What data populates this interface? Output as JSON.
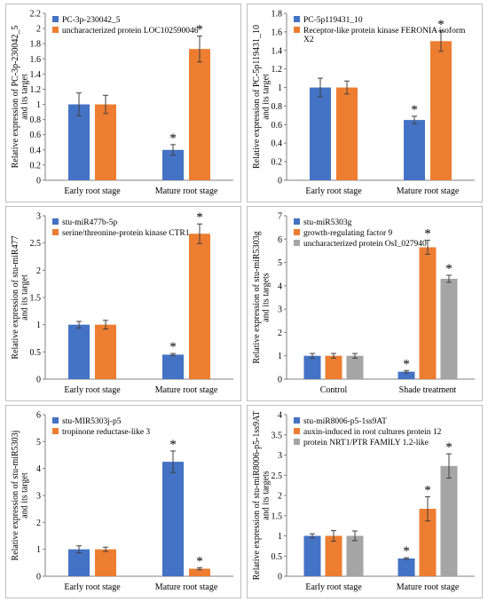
{
  "colors": {
    "blue": "#4472C4",
    "orange": "#ED7D31",
    "gray": "#A5A5A5"
  },
  "chart_data": [
    {
      "type": "bar",
      "ylabel": "Relative expression of PC-3p-230042_5 and its target",
      "categories": [
        "Early root stage",
        "Mature root stage"
      ],
      "ylim": [
        0,
        2.2
      ],
      "yticks": [
        0,
        0.2,
        0.4,
        0.6,
        0.8,
        1,
        1.2,
        1.4,
        1.6,
        1.8,
        2,
        2.2
      ],
      "legend_position": "top-left",
      "series": [
        {
          "name": "PC-3p-230042_5",
          "color": "#4472C4",
          "values": [
            1.0,
            0.4
          ],
          "errors": [
            0.15,
            0.07
          ],
          "significant": [
            false,
            true
          ]
        },
        {
          "name": "uncharacterized protein LOC102590046",
          "color": "#ED7D31",
          "values": [
            1.0,
            1.73
          ],
          "errors": [
            0.12,
            0.17
          ],
          "significant": [
            false,
            true
          ]
        }
      ]
    },
    {
      "type": "bar",
      "ylabel": "Relative expression of PC-5p119431_10 and its target",
      "categories": [
        "Early root stage",
        "Mature root stage"
      ],
      "ylim": [
        0,
        1.8
      ],
      "yticks": [
        0,
        0.2,
        0.4,
        0.6,
        0.8,
        1,
        1.2,
        1.4,
        1.6,
        1.8
      ],
      "legend_position": "top-left",
      "series": [
        {
          "name": "PC-5p119431_10",
          "color": "#4472C4",
          "values": [
            1.0,
            0.65
          ],
          "errors": [
            0.1,
            0.04
          ],
          "significant": [
            false,
            true
          ]
        },
        {
          "name": "Receptor-like protein kinase FERONIA isoform X2",
          "color": "#ED7D31",
          "values": [
            1.0,
            1.5
          ],
          "errors": [
            0.07,
            0.11
          ],
          "significant": [
            false,
            true
          ]
        }
      ]
    },
    {
      "type": "bar",
      "ylabel": "Relative expression of stu-miR477 and its target",
      "categories": [
        "Early root stage",
        "Mature root stage"
      ],
      "ylim": [
        0,
        3
      ],
      "yticks": [
        0,
        0.5,
        1,
        1.5,
        2,
        2.5,
        3
      ],
      "legend_position": "top-left",
      "series": [
        {
          "name": "stu-miR477b-5p",
          "color": "#4472C4",
          "values": [
            1.0,
            0.45
          ],
          "errors": [
            0.06,
            0.02
          ],
          "significant": [
            false,
            true
          ]
        },
        {
          "name": "serine/threonine-protein kinase CTR1",
          "color": "#ED7D31",
          "values": [
            1.0,
            2.67
          ],
          "errors": [
            0.08,
            0.18
          ],
          "significant": [
            false,
            true
          ]
        }
      ]
    },
    {
      "type": "bar",
      "ylabel": "Relative expression of stu-miR5303g and its targets",
      "categories": [
        "Control",
        "Shade treatment"
      ],
      "ylim": [
        0,
        7
      ],
      "yticks": [
        0,
        1,
        2,
        3,
        4,
        5,
        6,
        7
      ],
      "legend_position": "top-left",
      "series": [
        {
          "name": "stu-miR5303g",
          "color": "#4472C4",
          "values": [
            1.0,
            0.32
          ],
          "errors": [
            0.1,
            0.05
          ],
          "significant": [
            false,
            true
          ]
        },
        {
          "name": "growth-regulating factor 9",
          "color": "#ED7D31",
          "values": [
            1.0,
            5.65
          ],
          "errors": [
            0.1,
            0.3
          ],
          "significant": [
            false,
            true
          ]
        },
        {
          "name": "uncharacterized protein OsI_027940",
          "color": "#A5A5A5",
          "values": [
            1.0,
            4.3
          ],
          "errors": [
            0.1,
            0.15
          ],
          "significant": [
            false,
            true
          ]
        }
      ]
    },
    {
      "type": "bar",
      "ylabel": "Relative expression of stu-miR5303j and its target",
      "categories": [
        "Early root stage",
        "Mature root stage"
      ],
      "ylim": [
        0,
        6
      ],
      "yticks": [
        0,
        1,
        2,
        3,
        4,
        5,
        6
      ],
      "legend_position": "top-left",
      "series": [
        {
          "name": "stu-MIR5303j-p5",
          "color": "#4472C4",
          "values": [
            1.0,
            4.25
          ],
          "errors": [
            0.13,
            0.4
          ],
          "significant": [
            false,
            true
          ]
        },
        {
          "name": "tropinone reductase-like 3",
          "color": "#ED7D31",
          "values": [
            1.0,
            0.28
          ],
          "errors": [
            0.08,
            0.04
          ],
          "significant": [
            false,
            true
          ]
        }
      ]
    },
    {
      "type": "bar",
      "ylabel": "Relative expression of stu-miR8006-p5-1ss9AT and its targets",
      "categories": [
        "Early root stage",
        "Mature root stage"
      ],
      "ylim": [
        0,
        4
      ],
      "yticks": [
        0,
        0.5,
        1,
        1.5,
        2,
        2.5,
        3,
        3.5,
        4
      ],
      "legend_position": "top-left",
      "series": [
        {
          "name": "stu-miR8006-p5-1ss9AT",
          "color": "#4472C4",
          "values": [
            1.0,
            0.44
          ],
          "errors": [
            0.05,
            0.02
          ],
          "significant": [
            false,
            true
          ]
        },
        {
          "name": "auxin-induced in root cultures protein 12",
          "color": "#ED7D31",
          "values": [
            1.0,
            1.67
          ],
          "errors": [
            0.13,
            0.3
          ],
          "significant": [
            false,
            true
          ]
        },
        {
          "name": "protein NRT1/PTR FAMILY 1.2-like",
          "color": "#A5A5A5",
          "values": [
            1.0,
            2.73
          ],
          "errors": [
            0.12,
            0.3
          ],
          "significant": [
            false,
            true
          ]
        }
      ]
    }
  ]
}
